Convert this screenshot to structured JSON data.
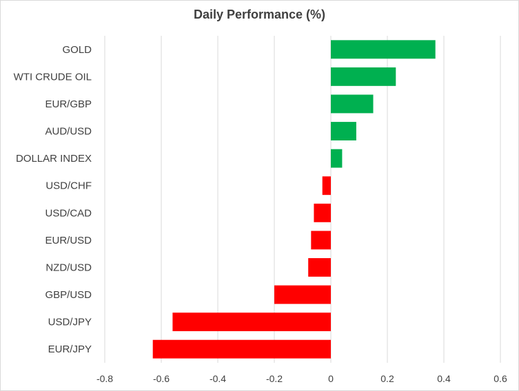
{
  "chart_data": {
    "type": "bar",
    "orientation": "horizontal",
    "title": "Daily Performance (%)",
    "xlabel": "",
    "ylabel": "",
    "xlim": [
      -0.8,
      0.6
    ],
    "x_ticks": [
      "-0.8",
      "-0.6",
      "-0.4",
      "-0.2",
      "0",
      "0.2",
      "0.4",
      "0.6"
    ],
    "grid": "vertical",
    "legend": "none",
    "colors": {
      "positive": "#00b050",
      "negative": "#ff0000",
      "grid": "#d9d9d9",
      "text": "#404040"
    },
    "categories": [
      "GOLD",
      "WTI CRUDE OIL",
      "EUR/GBP",
      "AUD/USD",
      "DOLLAR INDEX",
      "USD/CHF",
      "USD/CAD",
      "EUR/USD",
      "NZD/USD",
      "GBP/USD",
      "USD/JPY",
      "EUR/JPY"
    ],
    "values": [
      0.37,
      0.23,
      0.15,
      0.09,
      0.04,
      -0.03,
      -0.06,
      -0.07,
      -0.08,
      -0.2,
      -0.56,
      -0.63
    ]
  }
}
